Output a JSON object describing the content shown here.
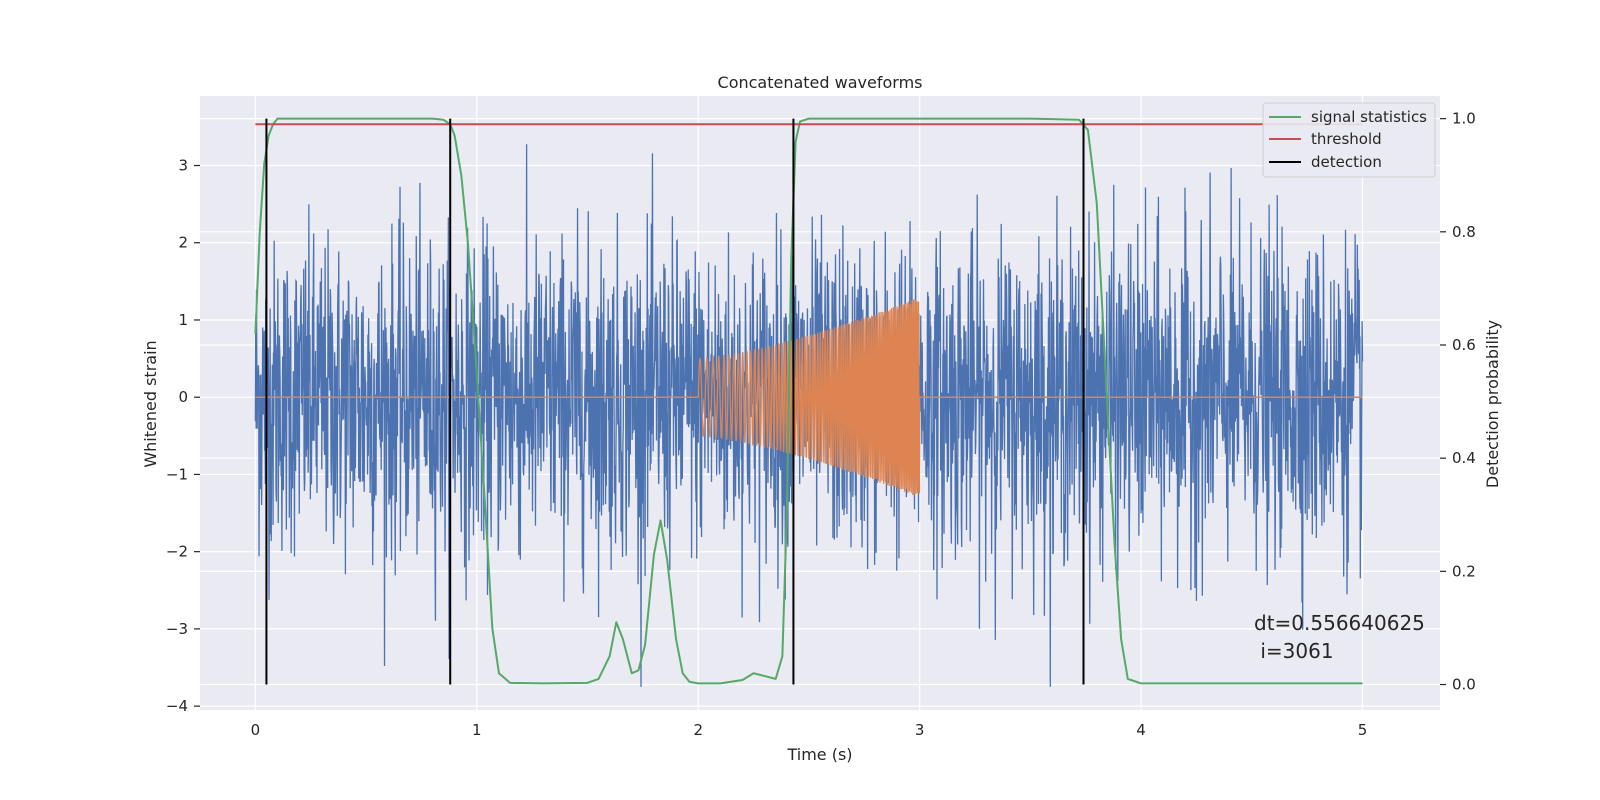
{
  "chart_data": {
    "type": "line",
    "title": "Concatenated waveforms",
    "xlabel": "Time (s)",
    "ylabel_left": "Whitened strain",
    "ylabel_right": "Detection probability",
    "xlim": [
      -0.25,
      5.35
    ],
    "ylim_left": [
      -4.05,
      3.9
    ],
    "ylim_right": [
      -0.045,
      1.04
    ],
    "x_ticks": [
      0,
      1,
      2,
      3,
      4,
      5
    ],
    "x_tick_labels": [
      "0",
      "1",
      "2",
      "3",
      "4",
      "5"
    ],
    "y_left_ticks": [
      -4,
      -3,
      -2,
      -1,
      0,
      1,
      2,
      3
    ],
    "y_left_tick_labels": [
      "−4",
      "−3",
      "−2",
      "−1",
      "0",
      "1",
      "2",
      "3"
    ],
    "y_right_ticks": [
      0.0,
      0.2,
      0.4,
      0.6,
      0.8,
      1.0
    ],
    "y_right_tick_labels": [
      "0.0",
      "0.2",
      "0.4",
      "0.6",
      "0.8",
      "1.0"
    ],
    "grid": true,
    "legend_placement": "top-right",
    "legend": [
      {
        "label": "signal statistics",
        "color": "#55a868"
      },
      {
        "label": "threshold",
        "color": "#c44e52"
      },
      {
        "label": "detection",
        "color": "#000000"
      }
    ],
    "series": [
      {
        "kind": "noise",
        "axis": "left",
        "color": "#4c72b0",
        "x_range": [
          0,
          5
        ],
        "typical_amplitude": 1.0,
        "peak_max": 3.5,
        "peak_min": -3.75
      },
      {
        "kind": "chirp",
        "axis": "left",
        "color": "#dd8452",
        "baseline": 0,
        "chirp_start": 2.0,
        "chirp_end": 3.0,
        "amplitude_start": 0.5,
        "amplitude_end": 1.3
      },
      {
        "name": "signal statistics",
        "axis": "right",
        "color": "#55a868",
        "x": [
          0,
          0.02,
          0.04,
          0.06,
          0.08,
          0.1,
          0.2,
          0.4,
          0.6,
          0.8,
          0.85,
          0.88,
          0.9,
          0.93,
          0.96,
          1.0,
          1.04,
          1.07,
          1.1,
          1.15,
          1.3,
          1.5,
          1.55,
          1.6,
          1.63,
          1.66,
          1.7,
          1.73,
          1.76,
          1.8,
          1.83,
          1.86,
          1.9,
          1.93,
          1.96,
          2.0,
          2.1,
          2.2,
          2.25,
          2.3,
          2.35,
          2.38,
          2.4,
          2.42,
          2.44,
          2.46,
          2.5,
          2.6,
          3.0,
          3.5,
          3.72,
          3.76,
          3.8,
          3.84,
          3.88,
          3.91,
          3.94,
          4.0,
          4.5,
          5.0
        ],
        "y": [
          0.62,
          0.8,
          0.92,
          0.97,
          0.99,
          1.0,
          1.0,
          1.0,
          1.0,
          1.0,
          0.998,
          0.99,
          0.97,
          0.9,
          0.78,
          0.55,
          0.3,
          0.1,
          0.02,
          0.003,
          0.002,
          0.003,
          0.01,
          0.05,
          0.11,
          0.08,
          0.02,
          0.025,
          0.07,
          0.23,
          0.29,
          0.22,
          0.08,
          0.02,
          0.005,
          0.002,
          0.002,
          0.008,
          0.02,
          0.015,
          0.01,
          0.05,
          0.3,
          0.75,
          0.96,
          0.995,
          1.0,
          1.0,
          1.0,
          1.0,
          0.998,
          0.98,
          0.85,
          0.55,
          0.25,
          0.08,
          0.01,
          0.002,
          0.002,
          0.002
        ]
      },
      {
        "name": "threshold",
        "axis": "right",
        "color": "#c44e52",
        "x": [
          0,
          5
        ],
        "y": [
          0.99,
          0.99
        ]
      }
    ],
    "detections": [
      0.05,
      0.88,
      2.43,
      3.74
    ],
    "annotation": {
      "line1": "dt=0.556640625",
      "line2": " i=3061"
    }
  }
}
